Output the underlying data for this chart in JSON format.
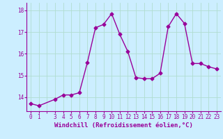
{
  "x": [
    0,
    1,
    3,
    4,
    5,
    6,
    7,
    8,
    9,
    10,
    11,
    12,
    13,
    14,
    15,
    16,
    17,
    18,
    19,
    20,
    21,
    22,
    23
  ],
  "y": [
    13.7,
    13.6,
    13.9,
    14.1,
    14.1,
    14.2,
    15.6,
    17.2,
    17.35,
    17.85,
    16.9,
    16.1,
    14.9,
    14.85,
    14.85,
    15.1,
    17.25,
    17.85,
    17.4,
    15.55,
    15.55,
    15.4,
    15.3
  ],
  "line_color": "#990099",
  "marker": "D",
  "markersize": 2.5,
  "linewidth": 1.0,
  "bg_color": "#cceeff",
  "grid_color": "#aaddcc",
  "tick_color": "#990099",
  "label_color": "#990099",
  "xlabel": "Windchill (Refroidissement éolien,°C)",
  "xlabel_fontsize": 6.5,
  "tick_fontsize": 5.5,
  "ytick_vals": [
    14,
    15,
    16,
    17,
    18
  ],
  "xtick_vals": [
    0,
    1,
    3,
    4,
    5,
    6,
    7,
    8,
    9,
    10,
    11,
    12,
    13,
    14,
    15,
    16,
    17,
    18,
    19,
    20,
    21,
    22,
    23
  ],
  "xlim": [
    -0.5,
    23.5
  ],
  "ylim": [
    13.35,
    18.35
  ]
}
